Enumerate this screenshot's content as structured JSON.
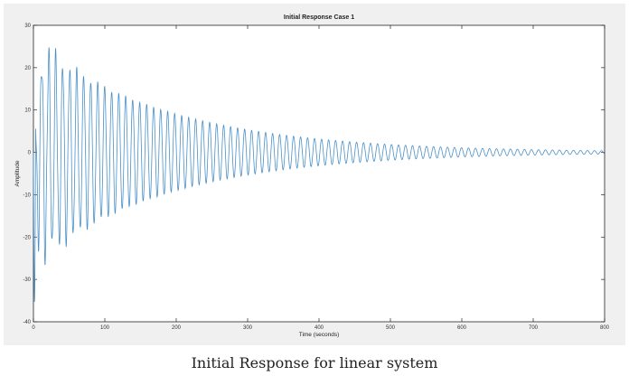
{
  "chart_data": {
    "type": "line",
    "title": "Initial Response Case 1",
    "xlabel": "Time (seconds)",
    "ylabel": "Amplitude",
    "xlim": [
      0,
      800
    ],
    "ylim": [
      -40,
      30
    ],
    "xticks": [
      0,
      100,
      200,
      300,
      400,
      500,
      600,
      700,
      800
    ],
    "yticks": [
      -40,
      -30,
      -20,
      -10,
      0,
      10,
      20,
      30
    ],
    "grid": false,
    "line_color": "#4a90c8",
    "signal": {
      "description_type": "damped oscillation",
      "initial_peak": 30,
      "initial_trough": -35.5,
      "period_seconds": 9.8,
      "decay_time_constant_seconds": 190,
      "settled_value": 0
    },
    "envelope_peaks": [
      {
        "x": 2,
        "y": -35.5
      },
      {
        "x": 7,
        "y": 11
      },
      {
        "x": 17,
        "y": 30
      },
      {
        "x": 22,
        "y": -18
      },
      {
        "x": 38,
        "y": -20
      },
      {
        "x": 47,
        "y": 17
      },
      {
        "x": 77,
        "y": 15
      },
      {
        "x": 150,
        "y": 8
      },
      {
        "x": 200,
        "y": 5
      },
      {
        "x": 300,
        "y": 2.5
      },
      {
        "x": 400,
        "y": 1.2
      },
      {
        "x": 500,
        "y": 0.8
      },
      {
        "x": 600,
        "y": 0.5
      },
      {
        "x": 700,
        "y": 0.3
      },
      {
        "x": 800,
        "y": 0.2
      }
    ]
  },
  "caption": "Initial Response for linear system"
}
